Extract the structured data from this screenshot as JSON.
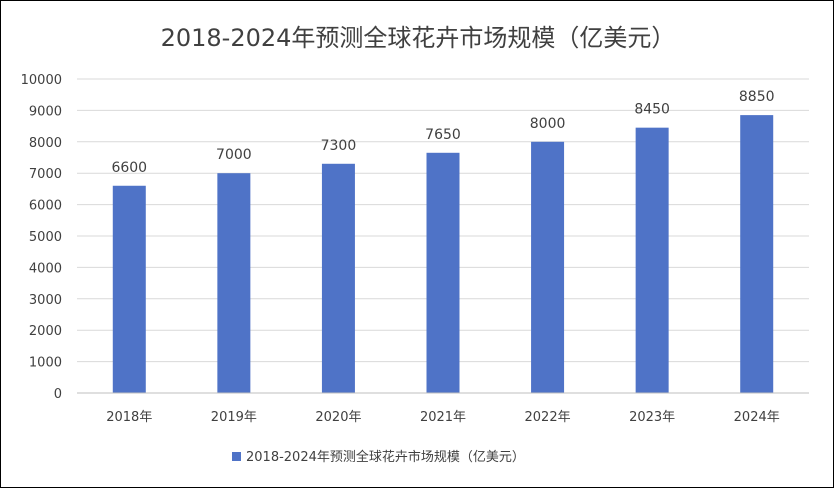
{
  "chart_data": {
    "type": "bar",
    "title": "2018-2024年预测全球花卉市场规模（亿美元）",
    "categories": [
      "2018年",
      "2019年",
      "2020年",
      "2021年",
      "2022年",
      "2023年",
      "2024年"
    ],
    "series": [
      {
        "name": "2018-2024年预测全球花卉市场规模（亿美元）",
        "values": [
          6600,
          7000,
          7300,
          7650,
          8000,
          8450,
          8850
        ],
        "color": "#4f73c7"
      }
    ],
    "ylim": [
      0,
      10000
    ],
    "yticks": [
      0,
      1000,
      2000,
      3000,
      4000,
      5000,
      6000,
      7000,
      8000,
      9000,
      10000
    ],
    "data_labels": true,
    "grid": true,
    "legend_position": "bottom"
  }
}
